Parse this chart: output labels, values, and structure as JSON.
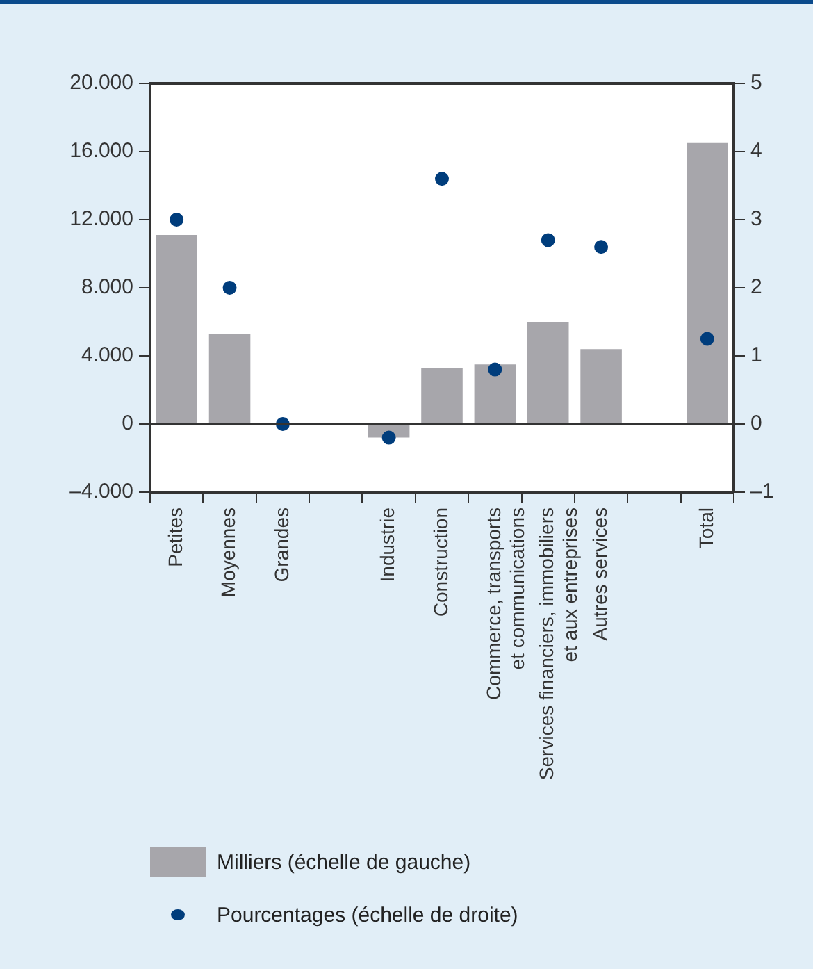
{
  "chart_data": {
    "type": "bar",
    "categories": [
      "Petites",
      "Moyennes",
      "Grandes",
      null,
      "Industrie",
      "Construction",
      "Commerce, transports\net communications",
      "Services financiers, immobiliers\net aux entreprises",
      "Autres services",
      null,
      "Total"
    ],
    "series": [
      {
        "name": "Milliers (échelle de gauche)",
        "color": "#a7a6ab",
        "values": [
          11100,
          5300,
          0,
          null,
          -800,
          3300,
          3500,
          6000,
          4400,
          null,
          16500
        ]
      },
      {
        "name": "Pourcentages (échelle de droite)",
        "type": "scatter",
        "axis": "y2",
        "color": "#003d7c",
        "values": [
          3.0,
          2.0,
          0,
          null,
          -0.2,
          3.6,
          0.8,
          2.7,
          2.6,
          null,
          1.25
        ]
      }
    ],
    "ylim": [
      -4000,
      20000
    ],
    "yticks": [
      {
        "value": -4000,
        "label": "–4.000"
      },
      {
        "value": 0,
        "label": "0"
      },
      {
        "value": 4000,
        "label": "4.000"
      },
      {
        "value": 8000,
        "label": "8.000"
      },
      {
        "value": 12000,
        "label": "12.000"
      },
      {
        "value": 16000,
        "label": "16.000"
      },
      {
        "value": 20000,
        "label": "20.000"
      }
    ],
    "y2lim": [
      -1,
      5
    ],
    "y2ticks": [
      {
        "value": -1,
        "label": "–1"
      },
      0,
      1,
      2,
      3,
      4,
      5
    ],
    "ref_lines": [
      {
        "axis": "y",
        "value": 0,
        "color": "#333333"
      }
    ],
    "grid": false,
    "legend": "bottom left",
    "marker": "circle"
  }
}
